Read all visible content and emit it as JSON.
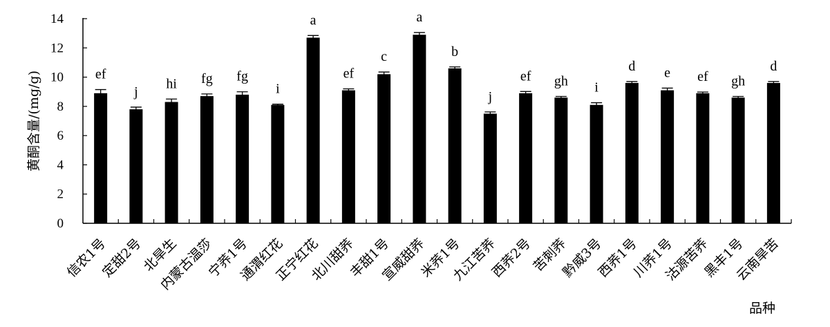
{
  "chart_data": {
    "type": "bar",
    "ylabel": "黄酮含量/(mg/g)",
    "xlabel": "品种",
    "ylim": [
      0,
      14
    ],
    "yticks": [
      0,
      2,
      4,
      6,
      8,
      10,
      12,
      14
    ],
    "grid": false,
    "colors": {
      "bar": "#000000",
      "axis": "#000000",
      "text": "#000000"
    },
    "categories": [
      "信农1号",
      "定甜2号",
      "北旱生",
      "内蒙古温莎",
      "宁荞1号",
      "通渭红花",
      "正宁红花",
      "北川甜荞",
      "丰甜1号",
      "宣威甜荞",
      "米荞1号",
      "九江苦荞",
      "西荞2号",
      "苦刺荞",
      "黔威3号",
      "西荞1号",
      "川荞1号",
      "沽源苦荞",
      "黑丰1号",
      "云南旱苦"
    ],
    "values": [
      8.9,
      7.8,
      8.3,
      8.7,
      8.8,
      8.1,
      12.7,
      9.1,
      10.2,
      12.9,
      10.6,
      7.5,
      8.9,
      8.6,
      8.1,
      9.6,
      9.1,
      8.9,
      8.6,
      9.6
    ],
    "errors": [
      0.25,
      0.15,
      0.2,
      0.15,
      0.2,
      0.05,
      0.15,
      0.1,
      0.15,
      0.15,
      0.1,
      0.12,
      0.12,
      0.08,
      0.15,
      0.1,
      0.15,
      0.08,
      0.08,
      0.1
    ],
    "significance_letters": [
      "ef",
      "j",
      "hi",
      "fg",
      "fg",
      "i",
      "a",
      "ef",
      "c",
      "a",
      "b",
      "j",
      "ef",
      "gh",
      "i",
      "d",
      "e",
      "ef",
      "gh",
      "d"
    ]
  }
}
